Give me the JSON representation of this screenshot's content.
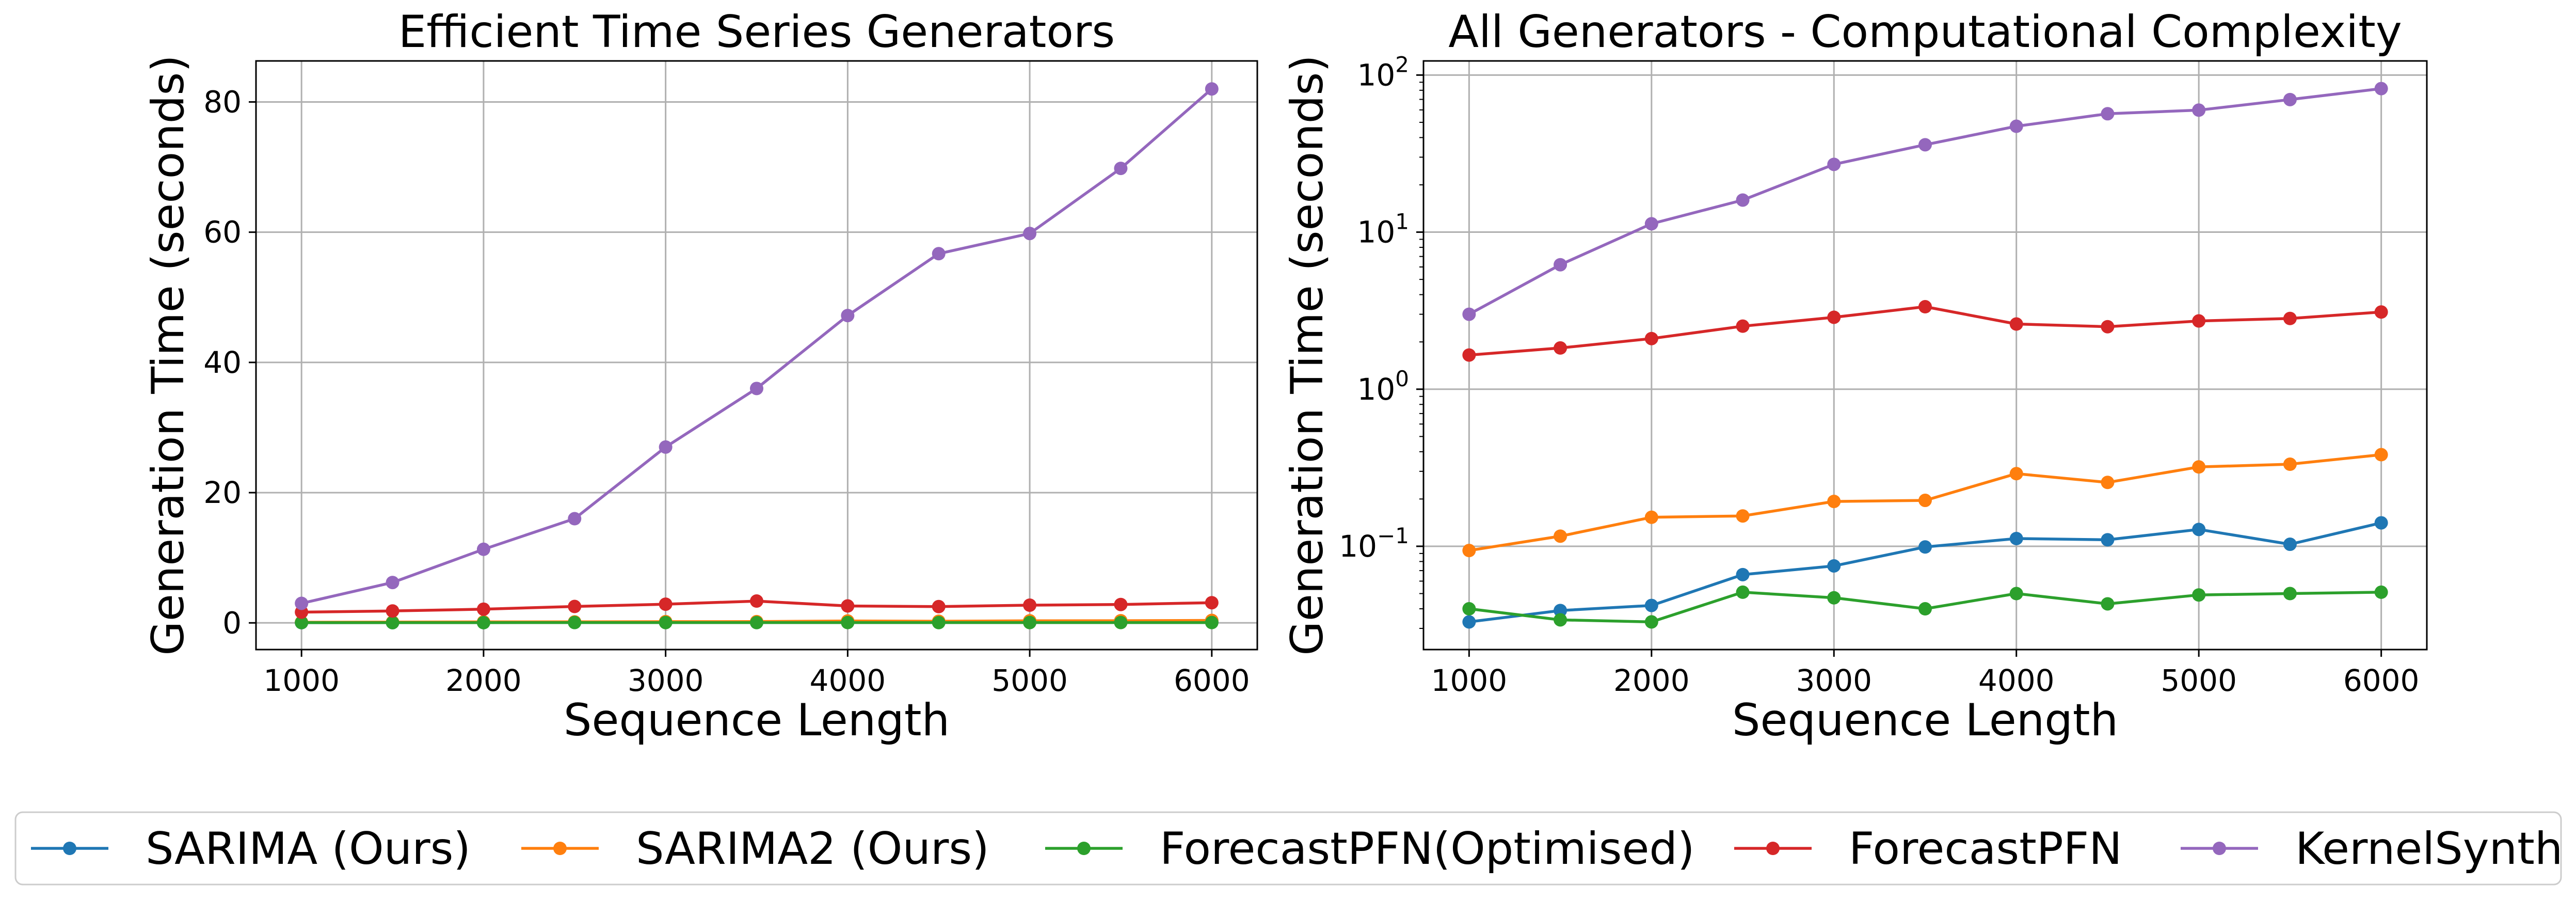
{
  "series_styles": [
    {
      "name": "SARIMA (Ours)",
      "color": "#1f77b4"
    },
    {
      "name": "SARIMA2 (Ours)",
      "color": "#ff7f0e"
    },
    {
      "name": "ForecastPFN(Optimised)",
      "color": "#2ca02c"
    },
    {
      "name": "ForecastPFN",
      "color": "#d62728"
    },
    {
      "name": "KernelSynth",
      "color": "#9467bd"
    }
  ],
  "legend": {
    "placement": "bottom-center"
  },
  "chart_data": [
    {
      "type": "line",
      "title": "Efficient Time Series Generators",
      "xlabel": "Sequence Length",
      "ylabel": "Generation Time (seconds)",
      "yscale": "linear",
      "grid": true,
      "xlim": [
        750,
        6250
      ],
      "ylim": [
        -4.1,
        86.3
      ],
      "xticks": [
        1000,
        2000,
        3000,
        4000,
        5000,
        6000
      ],
      "xtick_labels": [
        "1000",
        "2000",
        "3000",
        "4000",
        "5000",
        "6000"
      ],
      "yticks": [
        0,
        20,
        40,
        60,
        80
      ],
      "ytick_labels": [
        "0",
        "20",
        "40",
        "60",
        "80"
      ],
      "x": [
        1000,
        1500,
        2000,
        2500,
        3000,
        3500,
        4000,
        4500,
        5000,
        5500,
        6000
      ],
      "series": [
        {
          "name": "SARIMA (Ours)",
          "values": [
            0.033,
            0.039,
            0.042,
            0.066,
            0.075,
            0.099,
            0.112,
            0.11,
            0.128,
            0.103,
            0.141
          ]
        },
        {
          "name": "SARIMA2 (Ours)",
          "values": [
            0.094,
            0.116,
            0.153,
            0.156,
            0.193,
            0.196,
            0.29,
            0.255,
            0.32,
            0.333,
            0.383
          ]
        },
        {
          "name": "ForecastPFN(Optimised)",
          "values": [
            0.04,
            0.034,
            0.033,
            0.051,
            0.047,
            0.04,
            0.05,
            0.043,
            0.049,
            0.05,
            0.051
          ]
        },
        {
          "name": "ForecastPFN",
          "values": [
            1.65,
            1.83,
            2.1,
            2.52,
            2.87,
            3.35,
            2.6,
            2.5,
            2.72,
            2.82,
            3.1
          ]
        },
        {
          "name": "KernelSynth",
          "values": [
            3.0,
            6.2,
            11.3,
            16.0,
            27.0,
            36.0,
            47.2,
            56.7,
            59.8,
            69.8,
            82.0
          ]
        }
      ]
    },
    {
      "type": "line",
      "title": "All Generators - Computational Complexity",
      "xlabel": "Sequence Length",
      "ylabel": "Generation Time (seconds)",
      "yscale": "log",
      "grid": true,
      "xlim": [
        750,
        6250
      ],
      "ylim": [
        0.022,
        123
      ],
      "xticks": [
        1000,
        2000,
        3000,
        4000,
        5000,
        6000
      ],
      "xtick_labels": [
        "1000",
        "2000",
        "3000",
        "4000",
        "5000",
        "6000"
      ],
      "yticks": [
        0.1,
        1,
        10,
        100
      ],
      "ytick_labels": [
        {
          "base": "10",
          "exp": "−1"
        },
        {
          "base": "10",
          "exp": "0"
        },
        {
          "base": "10",
          "exp": "1"
        },
        {
          "base": "10",
          "exp": "2"
        }
      ],
      "x": [
        1000,
        1500,
        2000,
        2500,
        3000,
        3500,
        4000,
        4500,
        5000,
        5500,
        6000
      ],
      "series": [
        {
          "name": "SARIMA (Ours)",
          "values": [
            0.033,
            0.039,
            0.042,
            0.066,
            0.075,
            0.099,
            0.112,
            0.11,
            0.128,
            0.103,
            0.141
          ]
        },
        {
          "name": "SARIMA2 (Ours)",
          "values": [
            0.094,
            0.116,
            0.153,
            0.156,
            0.193,
            0.196,
            0.29,
            0.255,
            0.32,
            0.333,
            0.383
          ]
        },
        {
          "name": "ForecastPFN(Optimised)",
          "values": [
            0.04,
            0.034,
            0.033,
            0.051,
            0.047,
            0.04,
            0.05,
            0.043,
            0.049,
            0.05,
            0.051
          ]
        },
        {
          "name": "ForecastPFN",
          "values": [
            1.65,
            1.83,
            2.1,
            2.52,
            2.87,
            3.35,
            2.6,
            2.5,
            2.72,
            2.82,
            3.1
          ]
        },
        {
          "name": "KernelSynth",
          "values": [
            3.0,
            6.2,
            11.3,
            16.0,
            27.0,
            36.0,
            47.2,
            56.7,
            59.8,
            69.8,
            82.0
          ]
        }
      ]
    }
  ]
}
